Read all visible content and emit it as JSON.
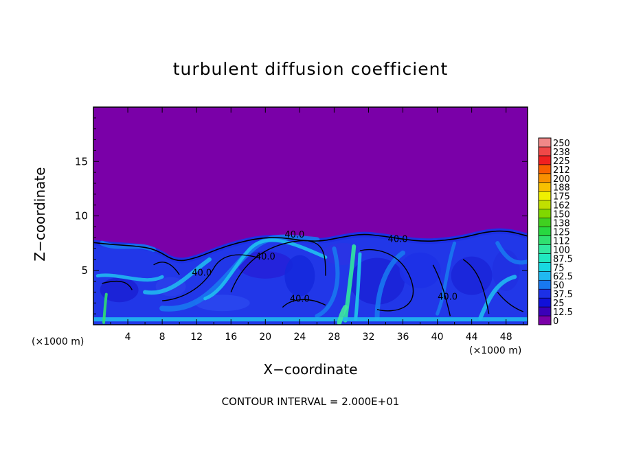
{
  "chart_data": {
    "type": "heatmap",
    "title": "turbulent diffusion coefficient",
    "xlabel": "X−coordinate",
    "ylabel": "Z−coordinate",
    "x_unit": "(×1000 m)",
    "z_unit": "(×1000 m)",
    "xlim": [
      0,
      50.5
    ],
    "ylim": [
      0,
      20
    ],
    "x_ticks": [
      "4",
      "8",
      "12",
      "16",
      "20",
      "24",
      "28",
      "32",
      "36",
      "40",
      "44",
      "48"
    ],
    "y_ticks": [
      "5",
      "10",
      "15"
    ],
    "contour_interval_label": "CONTOUR INTERVAL = 2.000E+01",
    "contour_labels": [
      {
        "text": "40.0",
        "x": 23.4,
        "z": 8.0
      },
      {
        "text": "40.0",
        "x": 35.4,
        "z": 7.6
      },
      {
        "text": "40.0",
        "x": 20.0,
        "z": 6.0
      },
      {
        "text": "40.0",
        "x": 12.6,
        "z": 4.5
      },
      {
        "text": "40.0",
        "x": 24.0,
        "z": 2.1
      },
      {
        "text": "40.0",
        "x": 41.2,
        "z": 2.3
      }
    ],
    "colorbar": {
      "levels": [
        "0",
        "12.5",
        "25",
        "37.5",
        "50",
        "62.5",
        "75",
        "87.5",
        "100",
        "112",
        "125",
        "138",
        "150",
        "162",
        "175",
        "188",
        "200",
        "212",
        "225",
        "238",
        "250"
      ],
      "colors": [
        "#7a00a8",
        "#3a00b8",
        "#1010d8",
        "#1c30e6",
        "#1878f0",
        "#20b8f0",
        "#18d8e0",
        "#20e8c0",
        "#30e8a0",
        "#30e070",
        "#28d840",
        "#40d020",
        "#80d800",
        "#c0e000",
        "#f0f000",
        "#f8c000",
        "#f89000",
        "#f86000",
        "#f02020",
        "#f04848",
        "#f08888"
      ]
    },
    "field": {
      "background_value": 0,
      "boundary_layer_top": [
        7.8,
        7.6,
        7.5,
        7.2,
        6.0,
        6.4,
        7.2,
        7.8,
        8.2,
        8.3,
        8.0,
        7.9,
        8.3,
        8.6,
        8.4,
        8.1,
        7.9,
        8.0,
        8.3,
        8.8,
        8.9,
        8.4
      ],
      "interior_value": 37.5
    }
  }
}
